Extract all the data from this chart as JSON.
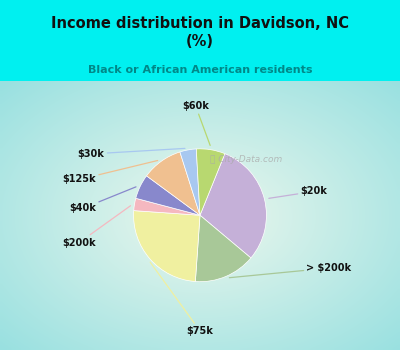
{
  "title": "Income distribution in Davidson, NC\n(%)",
  "subtitle": "Black or African American residents",
  "labels": [
    "$20k",
    "> $200k",
    "$75k",
    "$200k",
    "$40k",
    "$125k",
    "$30k",
    "$60k"
  ],
  "values": [
    30,
    15,
    25,
    3,
    6,
    10,
    4,
    7
  ],
  "colors": [
    "#c5b0d8",
    "#a8c898",
    "#f0f0a0",
    "#f5b8c0",
    "#8888cc",
    "#f0c090",
    "#a8c8f0",
    "#b8d870"
  ],
  "bg_color": "#00f0f0",
  "title_color": "#111111",
  "subtitle_color": "#008888",
  "watermark": "City-Data.com",
  "line_colors": [
    "#c5b0d8",
    "#a8c898",
    "#c8d870",
    "#f5b8c0",
    "#8888cc",
    "#f0c090",
    "#a8c8f0",
    "#b8d870"
  ]
}
